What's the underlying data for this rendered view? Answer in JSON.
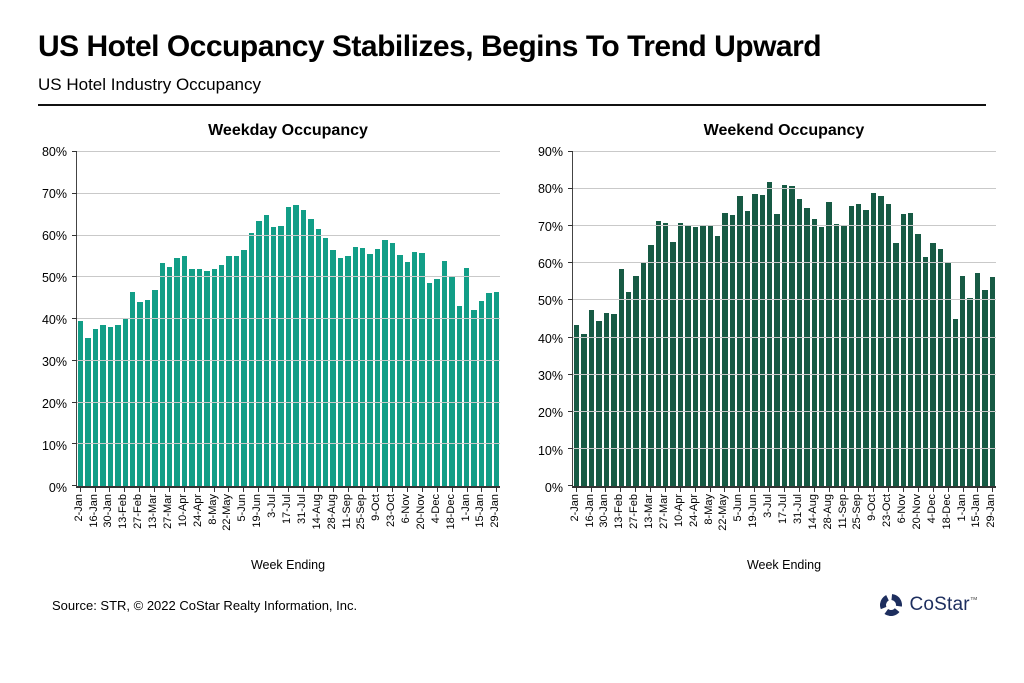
{
  "page": {
    "title": "US Hotel Occupancy Stabilizes, Begins To Trend Upward",
    "subtitle": "US Hotel Industry Occupancy",
    "source": "Source: STR, © 2022  CoStar Realty Information, Inc.",
    "brand": "CoStar",
    "brand_tm": "™",
    "grid_color": "#c9c9c9",
    "axis_color": "#333333"
  },
  "chart_data": [
    {
      "type": "bar",
      "title": "Weekday Occupancy",
      "xlabel": "Week Ending",
      "ylim": [
        0,
        80
      ],
      "ytick_step": 10,
      "ytick_suffix": "%",
      "grid": true,
      "legend": "none",
      "bar_color": "#129e87",
      "tick_label_every": 2,
      "tick_labels": [
        "2-Jan",
        "16-Jan",
        "30-Jan",
        "13-Feb",
        "27-Feb",
        "13-Mar",
        "27-Mar",
        "10-Apr",
        "24-Apr",
        "8-May",
        "22-May",
        "5-Jun",
        "19-Jun",
        "3-Jul",
        "17-Jul",
        "31-Jul",
        "14-Aug",
        "28-Aug",
        "11-Sep",
        "25-Sep",
        "9-Oct",
        "23-Oct",
        "6-Nov",
        "20-Nov",
        "4-Dec",
        "18-Dec",
        "1-Jan",
        "15-Jan",
        "29-Jan"
      ],
      "values": [
        39.5,
        35.5,
        37.5,
        38.5,
        38,
        38.5,
        40,
        46.5,
        44,
        44.5,
        47,
        53.5,
        52.5,
        54.5,
        55,
        52,
        52,
        51.5,
        52,
        53,
        55,
        55,
        56.5,
        60.5,
        63.5,
        65,
        62,
        62.3,
        66.8,
        67.4,
        66,
        64,
        61.5,
        59.5,
        56.5,
        54.5,
        55,
        57.2,
        57,
        55.6,
        56.8,
        59,
        58.3,
        55.4,
        53.6,
        56,
        55.8,
        48.6,
        49.6,
        54,
        50.3,
        43.2,
        52.2,
        42.2,
        44.4,
        46.2,
        46.4
      ]
    },
    {
      "type": "bar",
      "title": "Weekend Occupancy",
      "xlabel": "Week Ending",
      "ylim": [
        0,
        90
      ],
      "ytick_step": 10,
      "ytick_suffix": "%",
      "grid": true,
      "legend": "none",
      "bar_color": "#175a44",
      "tick_label_every": 2,
      "tick_labels": [
        "2-Jan",
        "16-Jan",
        "30-Jan",
        "13-Feb",
        "27-Feb",
        "13-Mar",
        "27-Mar",
        "10-Apr",
        "24-Apr",
        "8-May",
        "22-May",
        "5-Jun",
        "19-Jun",
        "3-Jul",
        "17-Jul",
        "31-Jul",
        "14-Aug",
        "28-Aug",
        "11-Sep",
        "25-Sep",
        "9-Oct",
        "23-Oct",
        "6-Nov",
        "20-Nov",
        "4-Dec",
        "18-Dec",
        "1-Jan",
        "15-Jan",
        "29-Jan"
      ],
      "values": [
        43.5,
        41,
        47.5,
        44.5,
        46.5,
        46.3,
        58.5,
        52.3,
        56.5,
        60,
        65,
        71.4,
        71,
        65.8,
        71,
        70,
        69.8,
        70,
        70.3,
        67.5,
        73.5,
        73,
        78.2,
        74.2,
        78.6,
        78.5,
        82,
        73.2,
        81,
        80.9,
        77.3,
        74.9,
        71.9,
        69.7,
        76.4,
        70.6,
        70.4,
        75.5,
        76,
        74.4,
        78.9,
        78.1,
        76,
        65.6,
        73.3,
        73.6,
        67.9,
        61.8,
        65.4,
        63.9,
        60.2,
        44.9,
        56.7,
        50.7,
        57.4,
        52.8,
        56.4
      ]
    }
  ]
}
